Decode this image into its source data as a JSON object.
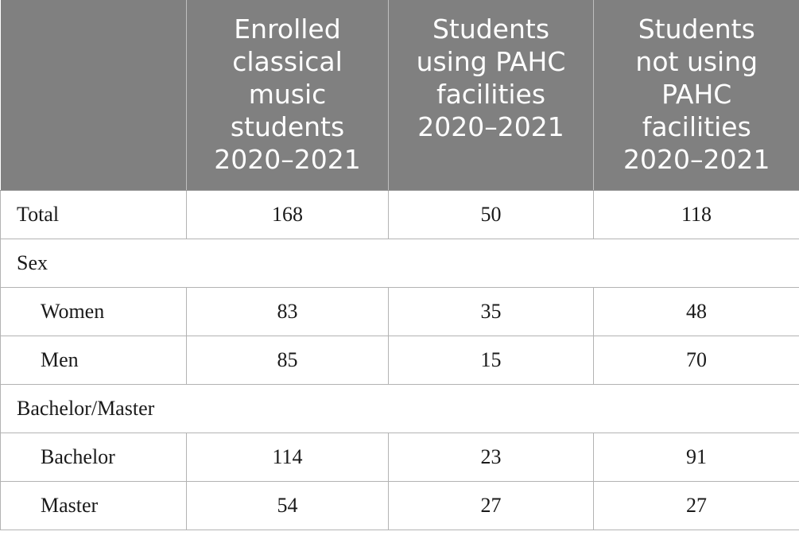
{
  "table": {
    "header": {
      "col0": "",
      "col1": [
        "Enrolled",
        "classical",
        "music",
        "students",
        "2020–2021"
      ],
      "col2": [
        "Students",
        "using PAHC",
        "facilities",
        "2020–2021"
      ],
      "col3": [
        "Students",
        "not using",
        "PAHC",
        "facilities",
        "2020–2021"
      ]
    },
    "rows": {
      "total": {
        "label": "Total",
        "enrolled": "168",
        "using": "50",
        "not_using": "118"
      },
      "sex": {
        "label": "Sex"
      },
      "women": {
        "label": "Women",
        "enrolled": "83",
        "using": "35",
        "not_using": "48"
      },
      "men": {
        "label": "Men",
        "enrolled": "85",
        "using": "15",
        "not_using": "70"
      },
      "degree": {
        "label": "Bachelor/Master"
      },
      "bachelor": {
        "label": "Bachelor",
        "enrolled": "114",
        "using": "23",
        "not_using": "91"
      },
      "master": {
        "label": "Master",
        "enrolled": "54",
        "using": "27",
        "not_using": "27"
      }
    }
  }
}
